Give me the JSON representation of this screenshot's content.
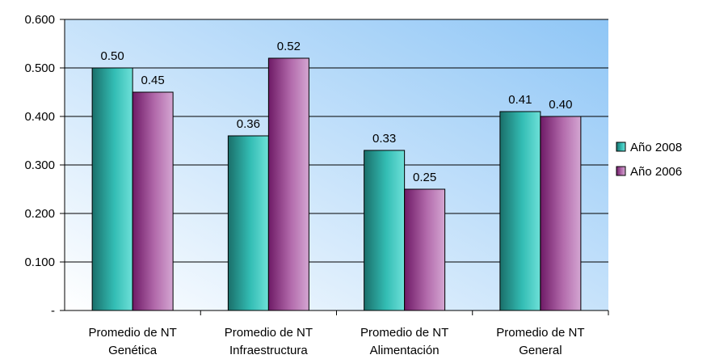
{
  "chart_data": {
    "type": "bar",
    "categories": [
      [
        "Promedio de NT",
        "Genética"
      ],
      [
        "Promedio de NT",
        "Infraestructura"
      ],
      [
        "Promedio de NT",
        "Alimentación"
      ],
      [
        "Promedio de NT",
        "General"
      ]
    ],
    "series": [
      {
        "name": "Año 2008",
        "values": [
          0.5,
          0.36,
          0.33,
          0.41
        ],
        "labels": [
          "0.50",
          "0.36",
          "0.33",
          "0.41"
        ],
        "color": "#2fb8b0"
      },
      {
        "name": "Año 2006",
        "values": [
          0.45,
          0.52,
          0.25,
          0.4
        ],
        "labels": [
          "0.45",
          "0.52",
          "0.25",
          "0.40"
        ],
        "color": "#9a3a8e"
      }
    ],
    "y_ticks": [
      0,
      0.1,
      0.2,
      0.3,
      0.4,
      0.5,
      0.6
    ],
    "y_tick_labels": [
      "-",
      "0.100",
      "0.200",
      "0.300",
      "0.400",
      "0.500",
      "0.600"
    ],
    "ylim": [
      0,
      0.6
    ],
    "grid": true,
    "legend_position": "right",
    "title": "",
    "xlabel": "",
    "ylabel": ""
  }
}
